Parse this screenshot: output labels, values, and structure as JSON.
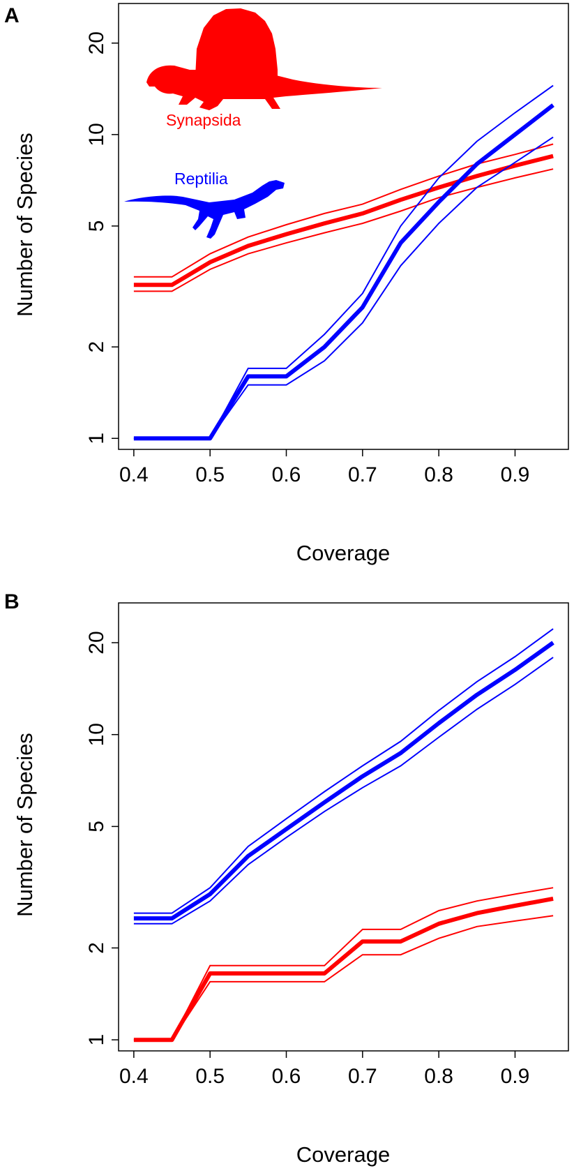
{
  "colors": {
    "synapsida": "#ff0000",
    "reptilia": "#0000ff",
    "axis": "#000000"
  },
  "icons": {
    "synapsida_silhouette": "dimetrodon-silhouette-icon",
    "reptilia_silhouette": "lizard-silhouette-icon"
  },
  "chart_data": [
    {
      "panel": "A",
      "type": "line",
      "xlabel": "Coverage",
      "ylabel": "Number of Species",
      "yscale": "log",
      "xlim": [
        0.38,
        0.97
      ],
      "ylim": [
        0.92,
        27
      ],
      "x_ticks": [
        "0.4",
        "0.5",
        "0.6",
        "0.7",
        "0.8",
        "0.9"
      ],
      "y_ticks": [
        "1",
        "2",
        "5",
        "10",
        "20"
      ],
      "annotations": [
        {
          "text": "Synapsida",
          "color": "#ff0000"
        },
        {
          "text": "Reptilia",
          "color": "#0000ff"
        }
      ],
      "x": [
        0.4,
        0.45,
        0.5,
        0.55,
        0.6,
        0.65,
        0.7,
        0.75,
        0.8,
        0.85,
        0.9,
        0.95
      ],
      "series": [
        {
          "name": "Synapsida",
          "color": "#ff0000",
          "values": [
            3.2,
            3.2,
            3.8,
            4.3,
            4.7,
            5.1,
            5.5,
            6.1,
            6.7,
            7.3,
            7.9,
            8.5
          ],
          "lower": [
            3.05,
            3.05,
            3.6,
            4.05,
            4.4,
            4.75,
            5.1,
            5.6,
            6.2,
            6.7,
            7.2,
            7.7
          ],
          "upper": [
            3.4,
            3.4,
            4.05,
            4.6,
            5.05,
            5.5,
            5.9,
            6.6,
            7.3,
            8.0,
            8.6,
            9.3
          ]
        },
        {
          "name": "Reptilia",
          "color": "#0000ff",
          "values": [
            1.0,
            1.0,
            1.0,
            1.6,
            1.6,
            2.0,
            2.7,
            4.4,
            6.0,
            8.0,
            10.0,
            12.5
          ],
          "lower": [
            1.0,
            1.0,
            1.0,
            1.5,
            1.5,
            1.8,
            2.4,
            3.7,
            5.1,
            6.7,
            8.1,
            9.8
          ],
          "upper": [
            1.0,
            1.0,
            1.0,
            1.7,
            1.7,
            2.2,
            3.0,
            5.0,
            7.2,
            9.5,
            11.8,
            14.5
          ]
        }
      ]
    },
    {
      "panel": "B",
      "type": "line",
      "xlabel": "Coverage",
      "ylabel": "Number of Species",
      "yscale": "log",
      "xlim": [
        0.38,
        0.97
      ],
      "ylim": [
        0.92,
        27
      ],
      "x_ticks": [
        "0.4",
        "0.5",
        "0.6",
        "0.7",
        "0.8",
        "0.9"
      ],
      "y_ticks": [
        "1",
        "2",
        "5",
        "10",
        "20"
      ],
      "x": [
        0.4,
        0.45,
        0.5,
        0.55,
        0.6,
        0.65,
        0.7,
        0.75,
        0.8,
        0.85,
        0.9,
        0.95
      ],
      "series": [
        {
          "name": "Reptilia",
          "color": "#0000ff",
          "values": [
            2.5,
            2.5,
            3.0,
            4.0,
            4.9,
            6.0,
            7.3,
            8.7,
            10.9,
            13.5,
            16.3,
            20.0
          ],
          "lower": [
            2.4,
            2.4,
            2.85,
            3.75,
            4.6,
            5.6,
            6.7,
            7.9,
            9.8,
            12.1,
            14.6,
            17.9
          ],
          "upper": [
            2.6,
            2.6,
            3.15,
            4.3,
            5.3,
            6.5,
            7.9,
            9.5,
            12.0,
            14.9,
            18.0,
            22.2
          ]
        },
        {
          "name": "Synapsida",
          "color": "#ff0000",
          "values": [
            1.0,
            1.0,
            1.65,
            1.65,
            1.65,
            1.65,
            2.1,
            2.1,
            2.4,
            2.6,
            2.75,
            2.9
          ],
          "lower": [
            1.0,
            1.0,
            1.55,
            1.55,
            1.55,
            1.55,
            1.9,
            1.9,
            2.15,
            2.35,
            2.45,
            2.55
          ],
          "upper": [
            1.0,
            1.0,
            1.75,
            1.75,
            1.75,
            1.75,
            2.3,
            2.3,
            2.65,
            2.85,
            3.0,
            3.15
          ]
        }
      ]
    }
  ]
}
